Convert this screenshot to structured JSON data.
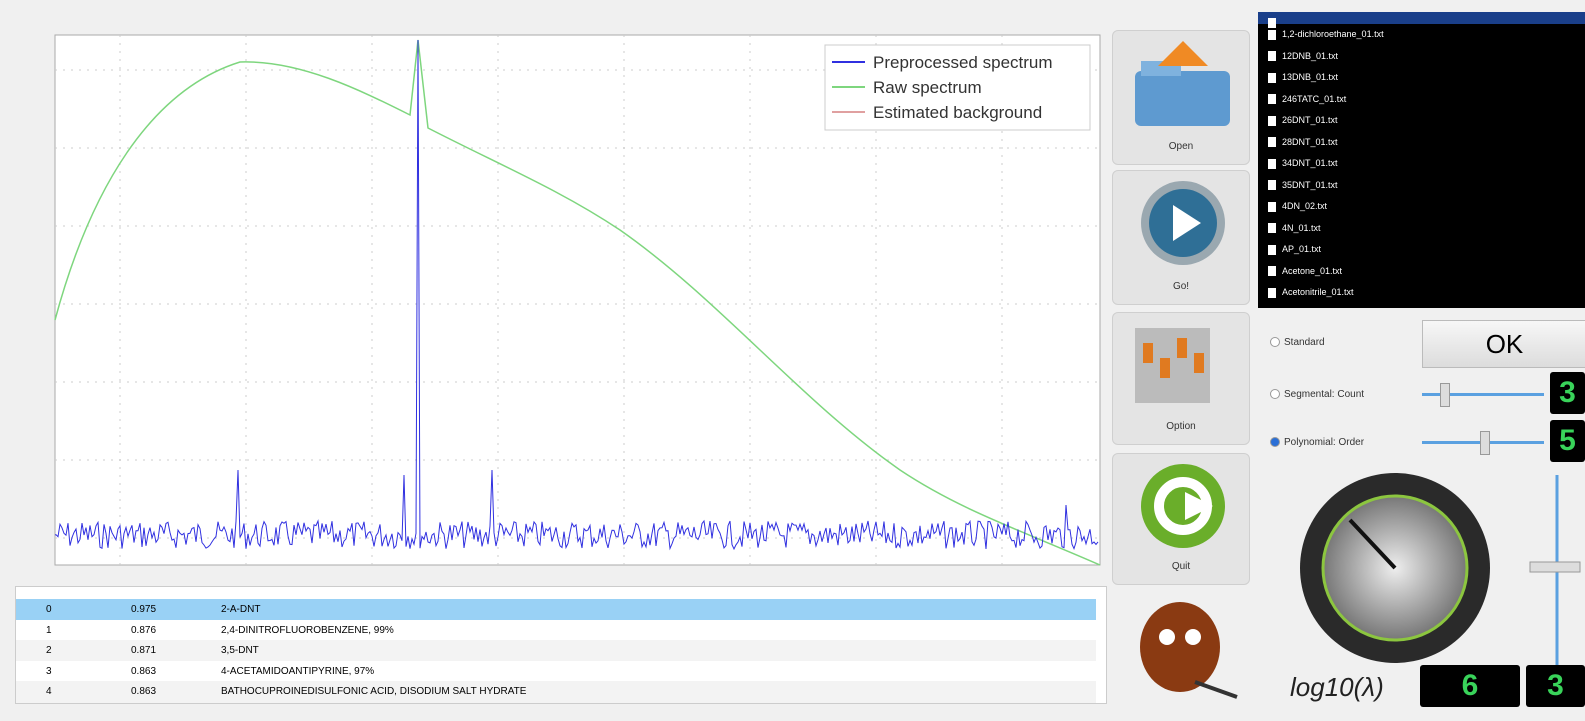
{
  "plot": {
    "legend": [
      {
        "label": "Preprocessed spectrum",
        "color": "#3030e0"
      },
      {
        "label": "Raw spectrum",
        "color": "#7ed67e"
      },
      {
        "label": "Estimated background",
        "color": "#e0a0a0"
      }
    ]
  },
  "table": {
    "rows": [
      [
        "0",
        "0.975",
        "2-A-DNT"
      ],
      [
        "1",
        "0.876",
        "2,4-DINITROFLUOROBENZENE, 99%"
      ],
      [
        "2",
        "0.871",
        "3,5-DNT"
      ],
      [
        "3",
        "0.863",
        "4-ACETAMIDOANTIPYRINE, 97%"
      ],
      [
        "4",
        "0.863",
        "BATHOCUPROINEDISULFONIC ACID, DISODIUM SALT HYDRATE"
      ]
    ]
  },
  "buttons": [
    "Open",
    "Go!",
    "Option",
    "Quit"
  ],
  "files": [
    "1,2-dichloroethane_01.txt",
    "12DNB_01.txt",
    "13DNB_01.txt",
    "246TATC_01.txt",
    "26DNT_01.txt",
    "28DNT_01.txt",
    "34DNT_01.txt",
    "35DNT_01.txt",
    "4DN_02.txt",
    "4N_01.txt",
    "AP_01.txt",
    "Acetone_01.txt",
    "Acetonitrile_01.txt"
  ],
  "options": {
    "standard": "Standard",
    "segmental": "Segmental: Count",
    "polynomial": "Polynomial: Order",
    "ok": "OK",
    "count": "3",
    "order": "5"
  },
  "lambda": {
    "label": "log10(λ)",
    "value": "6",
    "extra": "3"
  }
}
